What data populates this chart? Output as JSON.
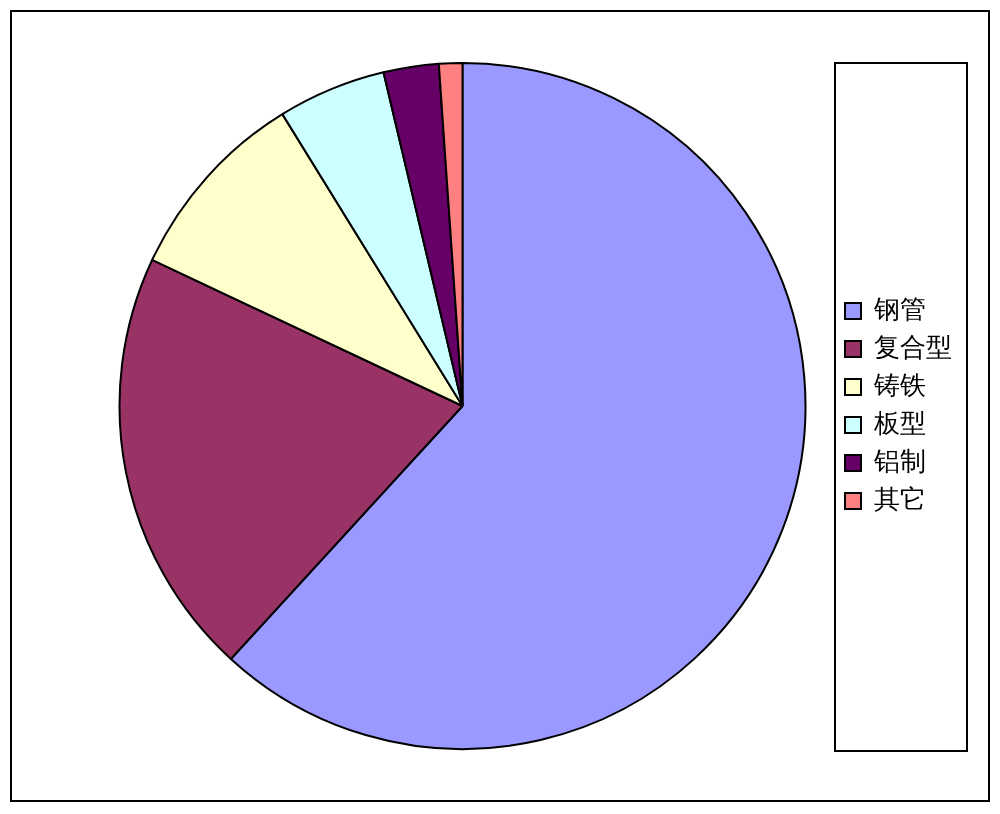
{
  "chart_data": {
    "type": "pie",
    "categories": [
      "钢管",
      "复合型",
      "铸铁",
      "板型",
      "铝制",
      "其它"
    ],
    "values": [
      61.8,
      20.2,
      9.2,
      5.1,
      2.6,
      1.1
    ],
    "colors": [
      "#9999ff",
      "#993366",
      "#ffffcc",
      "#ccffff",
      "#660066",
      "#ff8080"
    ],
    "legend": "right"
  }
}
